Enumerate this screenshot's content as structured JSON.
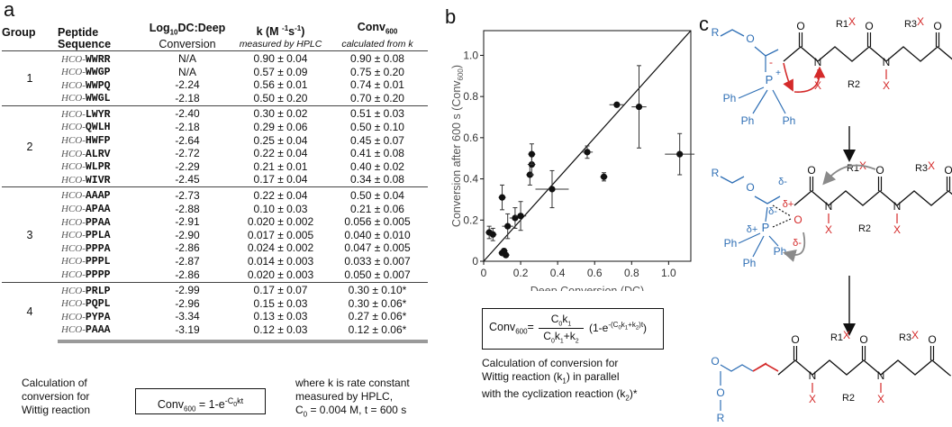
{
  "panel_a": {
    "label": "a",
    "headers": {
      "group": "Group",
      "peptide_line1": "Peptide",
      "peptide_line2": "Sequence",
      "dc_line1": "Log10DC:Deep",
      "dc_line2": "Conversion",
      "k_line1": "k (M -1s-1)",
      "k_line2": "measured by HPLC",
      "conv_line1": "Conv600",
      "conv_line2": "calculated from k"
    },
    "groups": [
      {
        "group": "1",
        "rows": [
          {
            "prefix": "HCO-",
            "seq": "WWRR",
            "dc": "N/A",
            "k": "0.90 ± 0.04",
            "conv": "0.90 ± 0.08"
          },
          {
            "prefix": "HCO-",
            "seq": "WWGP",
            "dc": "N/A",
            "k": "0.57 ± 0.09",
            "conv": "0.75 ± 0.20"
          },
          {
            "prefix": "HCO-",
            "seq": "WWPQ",
            "dc": "-2.24",
            "k": "0.56 ± 0.01",
            "conv": "0.74 ± 0.01"
          },
          {
            "prefix": "HCO-",
            "seq": "WWGL",
            "dc": "-2.18",
            "k": "0.50 ± 0.20",
            "conv": "0.70 ± 0.20"
          }
        ]
      },
      {
        "group": "2",
        "rows": [
          {
            "prefix": "HCO-",
            "seq": "LWYR",
            "dc": "-2.40",
            "k": "0.30 ± 0.02",
            "conv": "0.51 ± 0.03"
          },
          {
            "prefix": "HCO-",
            "seq": "QWLH",
            "dc": "-2.18",
            "k": "0.29 ± 0.06",
            "conv": "0.50 ± 0.10"
          },
          {
            "prefix": "HCO-",
            "seq": "HWFP",
            "dc": "-2.64",
            "k": "0.25 ± 0.04",
            "conv": "0.45 ± 0.07"
          },
          {
            "prefix": "HCO-",
            "seq": "ALRV",
            "dc": "-2.72",
            "k": "0.22 ± 0.04",
            "conv": "0.41 ± 0.08"
          },
          {
            "prefix": "HCO-",
            "seq": "WLPR",
            "dc": "-2.29",
            "k": "0.21 ± 0.01",
            "conv": "0.40 ± 0.02"
          },
          {
            "prefix": "HCO-",
            "seq": "WIVR",
            "dc": "-2.45",
            "k": "0.17 ± 0.04",
            "conv": "0.34 ± 0.08"
          }
        ]
      },
      {
        "group": "3",
        "rows": [
          {
            "prefix": "HCO-",
            "seq": "AAAP",
            "dc": "-2.73",
            "k": "0.22 ± 0.04",
            "conv": "0.50 ± 0.04"
          },
          {
            "prefix": "HCO-",
            "seq": "APAA",
            "dc": "-2.88",
            "k": "0.10 ± 0.03",
            "conv": "0.21 ± 0.06"
          },
          {
            "prefix": "HCO-",
            "seq": "PPAA",
            "dc": "-2.91",
            "k": "0.020 ± 0.002",
            "conv": "0.056 ± 0.005"
          },
          {
            "prefix": "HCO-",
            "seq": "PPLA",
            "dc": "-2.90",
            "k": "0.017 ± 0.005",
            "conv": "0.040 ± 0.010"
          },
          {
            "prefix": "HCO-",
            "seq": "PPPA",
            "dc": "-2.86",
            "k": "0.024 ± 0.002",
            "conv": "0.047 ± 0.005"
          },
          {
            "prefix": "HCO-",
            "seq": "PPPL",
            "dc": "-2.87",
            "k": "0.014 ± 0.003",
            "conv": "0.033 ± 0.007"
          },
          {
            "prefix": "HCO-",
            "seq": "PPPP",
            "dc": "-2.86",
            "k": "0.020 ± 0.003",
            "conv": "0.050 ± 0.007"
          }
        ]
      },
      {
        "group": "4",
        "rows": [
          {
            "prefix": "HCO-",
            "seq": "PRLP",
            "dc": "-2.99",
            "k": "0.17 ± 0.07",
            "conv": "0.30 ± 0.10*"
          },
          {
            "prefix": "HCO-",
            "seq": "PQPL",
            "dc": "-2.96",
            "k": "0.15 ± 0.03",
            "conv": "0.30 ± 0.06*"
          },
          {
            "prefix": "HCO-",
            "seq": "PYPA",
            "dc": "-3.34",
            "k": "0.13 ± 0.03",
            "conv": "0.27 ± 0.06*"
          },
          {
            "prefix": "HCO-",
            "seq": "PAAA",
            "dc": "-3.19",
            "k": "0.12 ± 0.03",
            "conv": "0.12 ± 0.06*"
          }
        ]
      }
    ],
    "footnote_left": [
      "Calculation of",
      "conversion for",
      "Wittig reaction"
    ],
    "equation": "Conv600 = 1-e-C0kt",
    "footnote_right": [
      "where k is rate constant",
      "measured by HPLC,",
      "C0 = 0.004 M, t = 600 s"
    ]
  },
  "panel_b": {
    "label": "b",
    "equation": "Conv600 = C0k1 / (C0k1+k2) (1-e-(C0k1+k2)t)",
    "caption": [
      "Calculation of conversion for",
      "Wittig reaction (k1) in parallel",
      "with the cyclization reaction (k2)*"
    ]
  },
  "chart_data": {
    "type": "scatter",
    "xlabel": "Deep Conversion (DC)",
    "ylabel": "Conversion after 600 s (Conv600)",
    "xlim": [
      0,
      1.12
    ],
    "ylim": [
      0,
      1.12
    ],
    "xticks": [
      "0",
      "0.2",
      "0.4",
      "0.6",
      "0.8",
      "1.0"
    ],
    "yticks": [
      "0",
      "0.2",
      "0.4",
      "0.6",
      "0.8",
      "1.0"
    ],
    "grid": false,
    "diagonal_line": true,
    "points": [
      {
        "x": 0.03,
        "y": 0.14,
        "xerr": 0.02,
        "yerr": 0.03
      },
      {
        "x": 0.05,
        "y": 0.13,
        "xerr": 0.02,
        "yerr": 0.03
      },
      {
        "x": 0.1,
        "y": 0.04,
        "xerr": 0.02,
        "yerr": 0.01
      },
      {
        "x": 0.12,
        "y": 0.03,
        "xerr": 0.02,
        "yerr": 0.01
      },
      {
        "x": 0.11,
        "y": 0.05,
        "xerr": 0.02,
        "yerr": 0.01
      },
      {
        "x": 0.1,
        "y": 0.31,
        "xerr": 0.02,
        "yerr": 0.06
      },
      {
        "x": 0.13,
        "y": 0.17,
        "xerr": 0.03,
        "yerr": 0.06
      },
      {
        "x": 0.17,
        "y": 0.21,
        "xerr": 0.03,
        "yerr": 0.05
      },
      {
        "x": 0.2,
        "y": 0.22,
        "xerr": 0.03,
        "yerr": 0.07
      },
      {
        "x": 0.25,
        "y": 0.42,
        "xerr": 0.02,
        "yerr": 0.05
      },
      {
        "x": 0.26,
        "y": 0.47,
        "xerr": 0.02,
        "yerr": 0.05
      },
      {
        "x": 0.26,
        "y": 0.52,
        "xerr": 0.02,
        "yerr": 0.05
      },
      {
        "x": 0.37,
        "y": 0.35,
        "xerr": 0.09,
        "yerr": 0.09
      },
      {
        "x": 0.56,
        "y": 0.53,
        "xerr": 0.03,
        "yerr": 0.03
      },
      {
        "x": 0.65,
        "y": 0.41,
        "xerr": 0.02,
        "yerr": 0.02
      },
      {
        "x": 0.72,
        "y": 0.76,
        "xerr": 0.04,
        "yerr": 0.01
      },
      {
        "x": 0.84,
        "y": 0.75,
        "xerr": 0.04,
        "yerr": 0.2
      },
      {
        "x": 1.06,
        "y": 0.52,
        "xerr": 0.08,
        "yerr": 0.1
      }
    ]
  },
  "panel_c": {
    "label": "c",
    "atoms": {
      "R": "R",
      "O": "O",
      "P": "P",
      "plus": "+",
      "minus": "-",
      "Ph": "Ph",
      "N": "N",
      "X": "X",
      "R1": "R1",
      "R2": "R2",
      "R3": "R3",
      "delta_minus": "δ-",
      "delta_plus": "δ+"
    }
  },
  "colors": {
    "blue": "#2f6fb5",
    "red": "#d42a2a",
    "gray_arrow": "#8a8a8a"
  }
}
